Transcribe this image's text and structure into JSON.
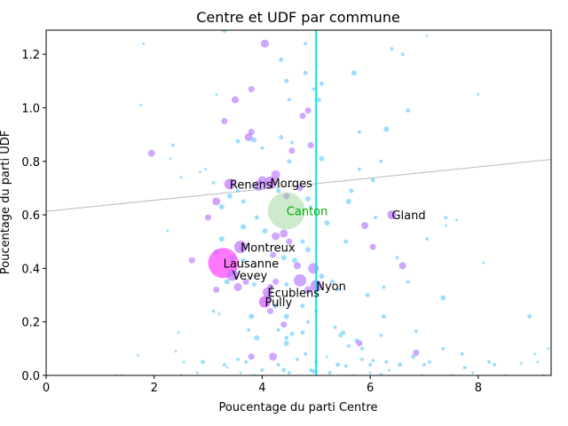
{
  "chart_data": {
    "type": "scatter",
    "title": "Centre et UDF par commune",
    "xlabel": "Poucentage du parti Centre",
    "ylabel": "Poucentage du parti UDF",
    "xlim": [
      0,
      9.35
    ],
    "ylim": [
      0,
      1.29
    ],
    "xticks": [
      0,
      2,
      4,
      6,
      8
    ],
    "yticks": [
      0.0,
      0.2,
      0.4,
      0.6,
      0.8,
      1.0,
      1.2
    ],
    "ytick_labels": [
      "0.0",
      "0.2",
      "0.4",
      "0.6",
      "0.8",
      "1.0",
      "1.2"
    ],
    "grid": false,
    "vline": {
      "x": 5.0,
      "color": "#00e5ee"
    },
    "trend_line": {
      "x": [
        0,
        9.35
      ],
      "y": [
        0.613,
        0.807
      ],
      "color": "#bbbbbb"
    },
    "colors": {
      "small": "#5cc8ff",
      "medium": "#b36bff",
      "large": "#ff40ff",
      "canton": "#90d090"
    },
    "highlighted": [
      {
        "label": "Lausanne",
        "x": 3.28,
        "y": 0.42,
        "size": 34,
        "color": "#ff40ff"
      },
      {
        "label": "Canton",
        "x": 4.45,
        "y": 0.615,
        "size": 42,
        "color": "#90d090",
        "label_color": "#00aa00"
      },
      {
        "label": "Renens",
        "x": 3.4,
        "y": 0.715,
        "size": 12,
        "color": "#c070ff"
      },
      {
        "label": "Morges",
        "x": 4.15,
        "y": 0.72,
        "size": 14,
        "color": "#c070ff"
      },
      {
        "label": "Montreux",
        "x": 3.6,
        "y": 0.48,
        "size": 14,
        "color": "#c070ff"
      },
      {
        "label": "Vevey",
        "x": 3.45,
        "y": 0.375,
        "size": 13,
        "color": "#c070ff"
      },
      {
        "label": "Gland",
        "x": 6.4,
        "y": 0.6,
        "size": 10,
        "color": "#c070ff"
      },
      {
        "label": "Nyon",
        "x": 5.0,
        "y": 0.335,
        "size": 13,
        "color": "#c070ff"
      },
      {
        "label": "Écublens",
        "x": 4.1,
        "y": 0.31,
        "size": 11,
        "color": "#c070ff"
      },
      {
        "label": "Pully",
        "x": 4.05,
        "y": 0.275,
        "size": 13,
        "color": "#d050ff"
      }
    ],
    "points": [
      [
        4.05,
        1.24,
        9
      ],
      [
        3.3,
        1.29,
        6
      ],
      [
        4.35,
        1.18,
        5
      ],
      [
        4.8,
        1.24,
        4
      ],
      [
        5.1,
        1.09,
        5
      ],
      [
        5.7,
        1.13,
        6
      ],
      [
        6.4,
        1.22,
        4
      ],
      [
        6.6,
        1.2,
        4
      ],
      [
        7.05,
        1.27,
        3
      ],
      [
        1.8,
        1.24,
        3
      ],
      [
        1.75,
        1.01,
        3
      ],
      [
        3.15,
        1.05,
        3
      ],
      [
        3.5,
        1.03,
        8
      ],
      [
        3.8,
        1.07,
        7
      ],
      [
        4.45,
        1.1,
        5
      ],
      [
        4.8,
        1.13,
        5
      ],
      [
        4.95,
        1.07,
        4
      ],
      [
        5.05,
        1.03,
        5
      ],
      [
        4.85,
        0.99,
        7
      ],
      [
        4.75,
        0.97,
        7
      ],
      [
        4.5,
        1.03,
        4
      ],
      [
        6.7,
        0.99,
        5
      ],
      [
        8.0,
        1.05,
        3
      ],
      [
        3.3,
        0.95,
        7
      ],
      [
        3.8,
        0.91,
        7
      ],
      [
        3.75,
        0.89,
        9
      ],
      [
        3.85,
        0.88,
        6
      ],
      [
        4.35,
        0.89,
        5
      ],
      [
        4.55,
        0.87,
        4
      ],
      [
        4.9,
        0.86,
        7
      ],
      [
        5.1,
        0.81,
        6
      ],
      [
        4.55,
        0.84,
        7
      ],
      [
        4.5,
        0.8,
        5
      ],
      [
        5.8,
        0.91,
        4
      ],
      [
        6.3,
        0.92,
        6
      ],
      [
        6.2,
        0.8,
        4
      ],
      [
        1.95,
        0.83,
        8
      ],
      [
        2.35,
        0.86,
        4
      ],
      [
        2.3,
        0.81,
        3
      ],
      [
        2.85,
        0.76,
        3
      ],
      [
        2.95,
        0.77,
        3
      ],
      [
        2.5,
        0.74,
        3
      ],
      [
        3.55,
        0.875,
        5
      ],
      [
        4.0,
        0.85,
        4
      ],
      [
        5.8,
        0.77,
        4
      ],
      [
        4.25,
        0.75,
        10
      ],
      [
        4.0,
        0.73,
        9
      ],
      [
        3.95,
        0.71,
        12
      ],
      [
        4.7,
        0.7,
        7
      ],
      [
        4.3,
        0.69,
        5
      ],
      [
        4.85,
        0.66,
        6
      ],
      [
        4.45,
        0.67,
        7
      ],
      [
        3.1,
        0.72,
        4
      ],
      [
        3.15,
        0.65,
        9
      ],
      [
        3.4,
        0.67,
        6
      ],
      [
        3.55,
        0.69,
        4
      ],
      [
        3.65,
        0.65,
        5
      ],
      [
        4.9,
        0.63,
        4
      ],
      [
        5.65,
        0.69,
        5
      ],
      [
        5.6,
        0.65,
        6
      ],
      [
        6.05,
        0.73,
        5
      ],
      [
        3.0,
        0.59,
        7
      ],
      [
        3.25,
        0.63,
        6
      ],
      [
        5.2,
        0.57,
        6
      ],
      [
        5.9,
        0.56,
        8
      ],
      [
        6.1,
        0.59,
        4
      ],
      [
        7.4,
        0.59,
        4
      ],
      [
        7.6,
        0.58,
        3
      ],
      [
        7.4,
        0.56,
        3
      ],
      [
        2.25,
        0.54,
        3
      ],
      [
        3.65,
        0.555,
        6
      ],
      [
        3.9,
        0.59,
        5
      ],
      [
        4.25,
        0.52,
        9
      ],
      [
        4.4,
        0.53,
        9
      ],
      [
        4.05,
        0.54,
        6
      ],
      [
        4.5,
        0.5,
        7
      ],
      [
        4.85,
        0.47,
        6
      ],
      [
        4.75,
        0.5,
        5
      ],
      [
        6.05,
        0.48,
        7
      ],
      [
        5.55,
        0.5,
        5
      ],
      [
        7.05,
        0.51,
        4
      ],
      [
        3.25,
        0.51,
        6
      ],
      [
        2.7,
        0.43,
        7
      ],
      [
        3.15,
        0.46,
        6
      ],
      [
        3.45,
        0.44,
        6
      ],
      [
        3.65,
        0.43,
        5
      ],
      [
        4.2,
        0.45,
        7
      ],
      [
        4.4,
        0.44,
        6
      ],
      [
        4.6,
        0.43,
        6
      ],
      [
        4.65,
        0.41,
        8
      ],
      [
        4.95,
        0.4,
        12
      ],
      [
        5.1,
        0.37,
        6
      ],
      [
        6.5,
        0.44,
        4
      ],
      [
        6.6,
        0.41,
        8
      ],
      [
        8.1,
        0.42,
        3
      ],
      [
        3.15,
        0.32,
        7
      ],
      [
        3.35,
        0.35,
        6
      ],
      [
        3.55,
        0.33,
        9
      ],
      [
        3.7,
        0.35,
        7
      ],
      [
        3.85,
        0.34,
        5
      ],
      [
        4.15,
        0.33,
        7
      ],
      [
        4.25,
        0.35,
        7
      ],
      [
        4.45,
        0.34,
        5
      ],
      [
        4.7,
        0.355,
        14
      ],
      [
        4.85,
        0.32,
        8
      ],
      [
        5.3,
        0.35,
        5
      ],
      [
        5.4,
        0.32,
        4
      ],
      [
        5.95,
        0.3,
        5
      ],
      [
        6.25,
        0.33,
        4
      ],
      [
        6.7,
        0.35,
        4
      ],
      [
        7.35,
        0.29,
        6
      ],
      [
        3.1,
        0.24,
        4
      ],
      [
        3.2,
        0.23,
        3
      ],
      [
        3.8,
        0.22,
        6
      ],
      [
        4.15,
        0.24,
        7
      ],
      [
        4.25,
        0.26,
        6
      ],
      [
        4.45,
        0.22,
        6
      ],
      [
        4.4,
        0.19,
        7
      ],
      [
        4.75,
        0.26,
        5
      ],
      [
        4.85,
        0.2,
        4
      ],
      [
        5.0,
        0.24,
        4
      ],
      [
        6.25,
        0.22,
        5
      ],
      [
        8.95,
        0.22,
        5
      ],
      [
        2.45,
        0.16,
        3
      ],
      [
        3.75,
        0.17,
        4
      ],
      [
        4.3,
        0.17,
        4
      ],
      [
        4.45,
        0.14,
        5
      ],
      [
        4.55,
        0.155,
        5
      ],
      [
        4.75,
        0.16,
        5
      ],
      [
        5.35,
        0.18,
        4
      ],
      [
        5.5,
        0.16,
        5
      ],
      [
        5.45,
        0.15,
        5
      ],
      [
        5.75,
        0.13,
        5
      ],
      [
        5.8,
        0.12,
        7
      ],
      [
        5.6,
        0.11,
        4
      ],
      [
        5.85,
        0.1,
        4
      ],
      [
        6.2,
        0.15,
        4
      ],
      [
        6.85,
        0.165,
        4
      ],
      [
        3.9,
        0.14,
        6
      ],
      [
        4.45,
        0.12,
        6
      ],
      [
        1.7,
        0.075,
        3
      ],
      [
        2.4,
        0.09,
        3
      ],
      [
        3.8,
        0.07,
        7
      ],
      [
        4.2,
        0.07,
        9
      ],
      [
        3.7,
        0.05,
        4
      ],
      [
        4.3,
        0.04,
        4
      ],
      [
        4.65,
        0.06,
        4
      ],
      [
        4.8,
        0.08,
        4
      ],
      [
        5.0,
        0.05,
        4
      ],
      [
        5.4,
        0.04,
        5
      ],
      [
        5.55,
        0.035,
        4
      ],
      [
        6.0,
        0.04,
        4
      ],
      [
        6.05,
        0.055,
        4
      ],
      [
        6.3,
        0.05,
        4
      ],
      [
        6.55,
        0.04,
        5
      ],
      [
        6.8,
        0.07,
        5
      ],
      [
        6.85,
        0.085,
        7
      ],
      [
        7.0,
        0.04,
        4
      ],
      [
        7.1,
        0.05,
        4
      ],
      [
        7.35,
        0.1,
        4
      ],
      [
        7.7,
        0.08,
        4
      ],
      [
        7.75,
        0.03,
        4
      ],
      [
        8.2,
        0.05,
        4
      ],
      [
        8.3,
        0.04,
        4
      ],
      [
        8.8,
        0.045,
        3
      ],
      [
        9.1,
        0.05,
        3
      ],
      [
        9.05,
        0.08,
        3
      ],
      [
        9.3,
        0.1,
        3
      ],
      [
        2.9,
        0.05,
        5
      ],
      [
        3.3,
        0.04,
        4
      ],
      [
        3.35,
        0.03,
        3
      ],
      [
        3.6,
        0.01,
        3
      ],
      [
        3.85,
        0.0,
        3
      ],
      [
        4.0,
        0.02,
        4
      ],
      [
        4.5,
        0.01,
        4
      ],
      [
        4.9,
        0.02,
        4
      ],
      [
        4.95,
        0.015,
        5
      ],
      [
        5.25,
        0.01,
        4
      ],
      [
        5.7,
        0.0,
        3
      ],
      [
        6.0,
        0.01,
        3
      ],
      [
        6.35,
        0.02,
        3
      ],
      [
        6.95,
        0.0,
        3
      ],
      [
        7.9,
        0.01,
        3
      ],
      [
        2.55,
        0.05,
        3
      ],
      [
        1.3,
        0.0,
        3
      ],
      [
        2.8,
        0.01,
        3
      ],
      [
        3.55,
        0.06,
        4
      ],
      [
        4.4,
        0.02,
        5
      ],
      [
        5.2,
        0.07,
        3
      ],
      [
        5.85,
        0.06,
        4
      ],
      [
        6.2,
        0.005,
        3
      ],
      [
        8.5,
        0.0,
        3
      ],
      [
        2.5,
        0.0,
        3
      ],
      [
        1.4,
        0.0,
        3
      ],
      [
        7.5,
        0.0,
        3
      ],
      [
        9.2,
        0.0,
        3
      ]
    ]
  }
}
